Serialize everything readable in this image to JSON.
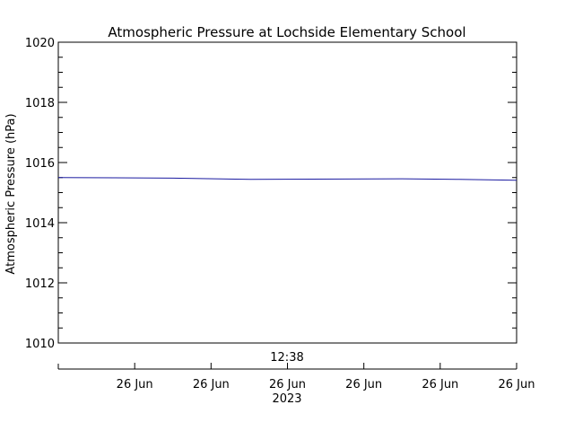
{
  "chart_data": {
    "type": "line",
    "title": "Atmospheric Pressure at Lochside Elementary School",
    "ylabel": "Atmospheric Pressure (hPa)",
    "ylim": [
      1010,
      1020
    ],
    "yticks": [
      1010,
      1012,
      1014,
      1016,
      1018,
      1020
    ],
    "ytick_labels": [
      "1010",
      "1012",
      "1014",
      "1016",
      "1018",
      "1020"
    ],
    "y_minor_step": 0.5,
    "x_time_label": "12:38",
    "x_year_label": "2023",
    "xticks": [
      {
        "pos": 0.1667,
        "label": "26 Jun"
      },
      {
        "pos": 0.3333,
        "label": "26 Jun"
      },
      {
        "pos": 0.5,
        "label": "26 Jun"
      },
      {
        "pos": 0.6667,
        "label": "26 Jun"
      },
      {
        "pos": 0.8333,
        "label": "26 Jun"
      },
      {
        "pos": 1.0,
        "label": "26 Jun"
      }
    ],
    "grid": false,
    "series": [
      {
        "color": "#1a1aa0",
        "x": [
          0.0,
          0.25,
          0.42,
          0.75,
          0.875,
          1.0
        ],
        "values": [
          1015.5,
          1015.48,
          1015.44,
          1015.46,
          1015.44,
          1015.41
        ]
      }
    ]
  }
}
